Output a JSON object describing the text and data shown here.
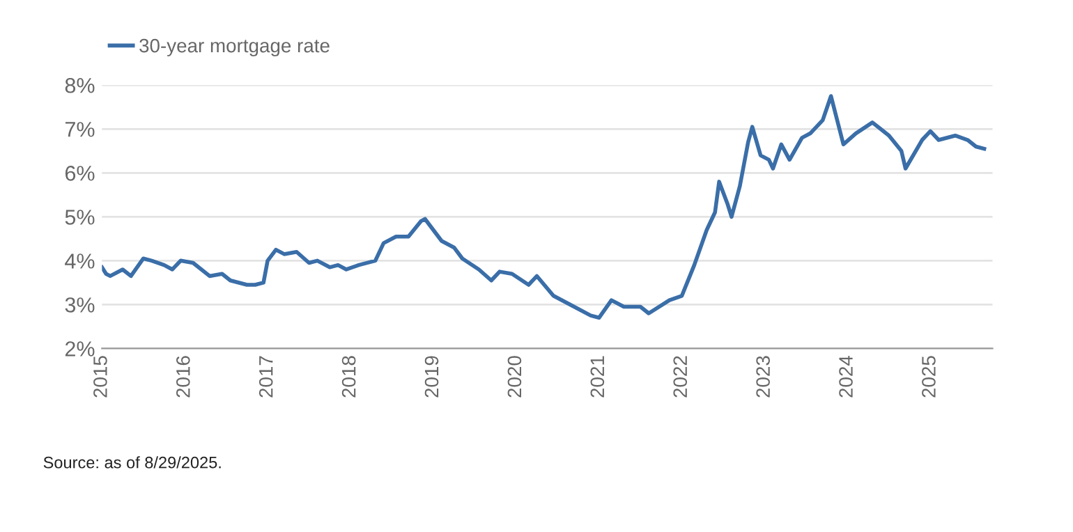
{
  "chart_data": {
    "type": "line",
    "x": [
      2015.0,
      2015.05,
      2015.1,
      2015.25,
      2015.35,
      2015.5,
      2015.6,
      2015.75,
      2015.85,
      2015.95,
      2016.1,
      2016.3,
      2016.45,
      2016.55,
      2016.75,
      2016.85,
      2016.95,
      2017.0,
      2017.1,
      2017.2,
      2017.35,
      2017.5,
      2017.6,
      2017.75,
      2017.85,
      2017.95,
      2018.1,
      2018.3,
      2018.4,
      2018.55,
      2018.7,
      2018.85,
      2018.9,
      2019.1,
      2019.25,
      2019.35,
      2019.55,
      2019.7,
      2019.8,
      2019.95,
      2020.15,
      2020.25,
      2020.45,
      2020.7,
      2020.9,
      2021.0,
      2021.15,
      2021.3,
      2021.5,
      2021.6,
      2021.85,
      2022.0,
      2022.15,
      2022.3,
      2022.4,
      2022.45,
      2022.55,
      2022.6,
      2022.7,
      2022.8,
      2022.85,
      2022.95,
      2023.05,
      2023.1,
      2023.2,
      2023.3,
      2023.45,
      2023.55,
      2023.7,
      2023.8,
      2023.95,
      2024.1,
      2024.3,
      2024.5,
      2024.65,
      2024.7,
      2024.9,
      2025.0,
      2025.1,
      2025.3,
      2025.45,
      2025.55,
      2025.65
    ],
    "series": [
      {
        "name": "30-year mortgage rate",
        "color": "#3a6ea8",
        "values": [
          3.85,
          3.7,
          3.65,
          3.8,
          3.65,
          4.05,
          4.0,
          3.9,
          3.8,
          4.0,
          3.95,
          3.65,
          3.7,
          3.55,
          3.45,
          3.45,
          3.5,
          4.0,
          4.25,
          4.15,
          4.2,
          3.95,
          4.0,
          3.85,
          3.9,
          3.8,
          3.9,
          4.0,
          4.4,
          4.55,
          4.55,
          4.9,
          4.95,
          4.45,
          4.3,
          4.05,
          3.8,
          3.55,
          3.75,
          3.7,
          3.45,
          3.65,
          3.2,
          2.95,
          2.75,
          2.7,
          3.1,
          2.95,
          2.95,
          2.8,
          3.1,
          3.2,
          3.9,
          4.7,
          5.1,
          5.8,
          5.3,
          5.0,
          5.7,
          6.7,
          7.05,
          6.4,
          6.3,
          6.1,
          6.65,
          6.3,
          6.8,
          6.9,
          7.2,
          7.75,
          6.65,
          6.9,
          7.15,
          6.85,
          6.5,
          6.1,
          6.75,
          6.95,
          6.75,
          6.85,
          6.75,
          6.6,
          6.55
        ]
      }
    ],
    "xlim": [
      2015,
      2025.75
    ],
    "xticks": [
      2015,
      2016,
      2017,
      2018,
      2019,
      2020,
      2021,
      2022,
      2023,
      2024,
      2025
    ],
    "ylim": [
      2,
      8
    ],
    "yticks": [
      {
        "value": 2,
        "label": "2%"
      },
      {
        "value": 3,
        "label": "3%"
      },
      {
        "value": 4,
        "label": "4%"
      },
      {
        "value": 5,
        "label": "5%"
      },
      {
        "value": 6,
        "label": "6%"
      },
      {
        "value": 7,
        "label": "7%"
      },
      {
        "value": 8,
        "label": "8%"
      }
    ],
    "grid": "y",
    "legend": "top left",
    "annotations": [
      "Source: as of 8/29/2025."
    ]
  }
}
